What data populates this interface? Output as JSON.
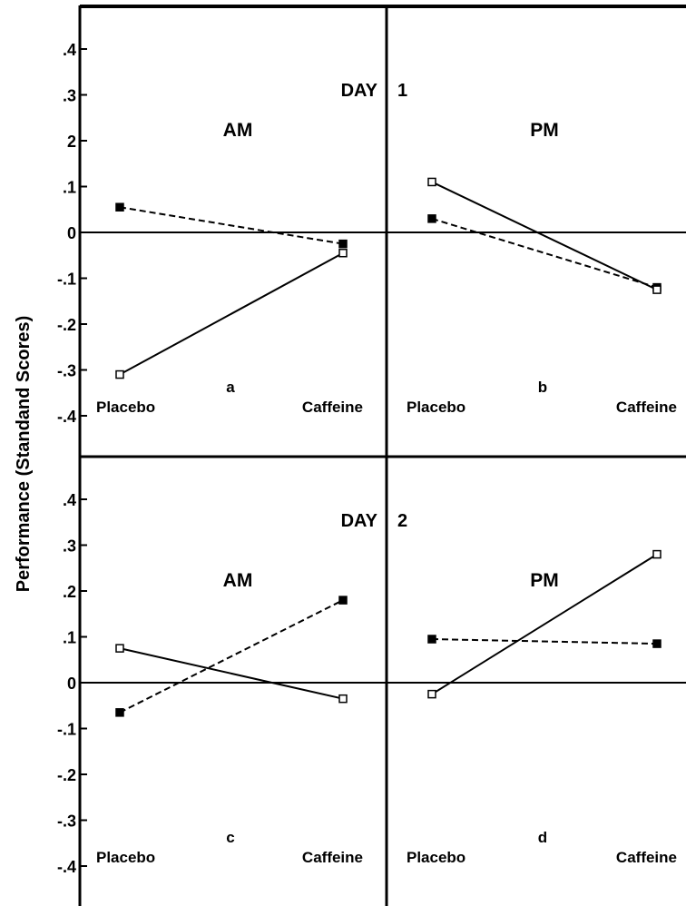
{
  "chart_data": {
    "type": "line",
    "ylabel": "Performance (Standand Scores)",
    "day_labels": [
      "DAY",
      "1",
      "DAY",
      "2"
    ],
    "y_ticks": {
      "day1": [
        ".4",
        ".3",
        "2",
        ".1",
        "0",
        "-.1",
        "-.2",
        "-.3",
        "-.4"
      ],
      "day2": [
        ".4",
        ".3",
        ".2",
        ".1",
        "0",
        "-.1",
        "-.2",
        "-.3",
        "-.4"
      ]
    },
    "ylim": [
      -0.4,
      0.4
    ],
    "panels": [
      {
        "id": "a",
        "day": 1,
        "session": "AM",
        "categories": [
          "Placebo",
          "Caffeine"
        ],
        "series": [
          {
            "marker": "filled-square",
            "line": "dashed",
            "values": [
              0.055,
              -0.025
            ]
          },
          {
            "marker": "open-square",
            "line": "solid",
            "values": [
              -0.31,
              -0.045
            ]
          }
        ]
      },
      {
        "id": "b",
        "day": 1,
        "session": "PM",
        "categories": [
          "Placebo",
          "Caffeine"
        ],
        "series": [
          {
            "marker": "filled-square",
            "line": "dashed",
            "values": [
              0.03,
              -0.12
            ]
          },
          {
            "marker": "open-square",
            "line": "solid",
            "values": [
              0.11,
              -0.125
            ]
          }
        ]
      },
      {
        "id": "c",
        "day": 2,
        "session": "AM",
        "categories": [
          "Placebo",
          "Caffeine"
        ],
        "series": [
          {
            "marker": "filled-square",
            "line": "dashed",
            "values": [
              -0.065,
              0.18
            ]
          },
          {
            "marker": "open-square",
            "line": "solid",
            "values": [
              0.075,
              -0.035
            ]
          }
        ]
      },
      {
        "id": "d",
        "day": 2,
        "session": "PM",
        "categories": [
          "Placebo",
          "Caffeine"
        ],
        "series": [
          {
            "marker": "filled-square",
            "line": "dashed",
            "values": [
              0.095,
              0.085
            ]
          },
          {
            "marker": "open-square",
            "line": "solid",
            "values": [
              -0.025,
              0.28
            ]
          }
        ]
      }
    ]
  }
}
